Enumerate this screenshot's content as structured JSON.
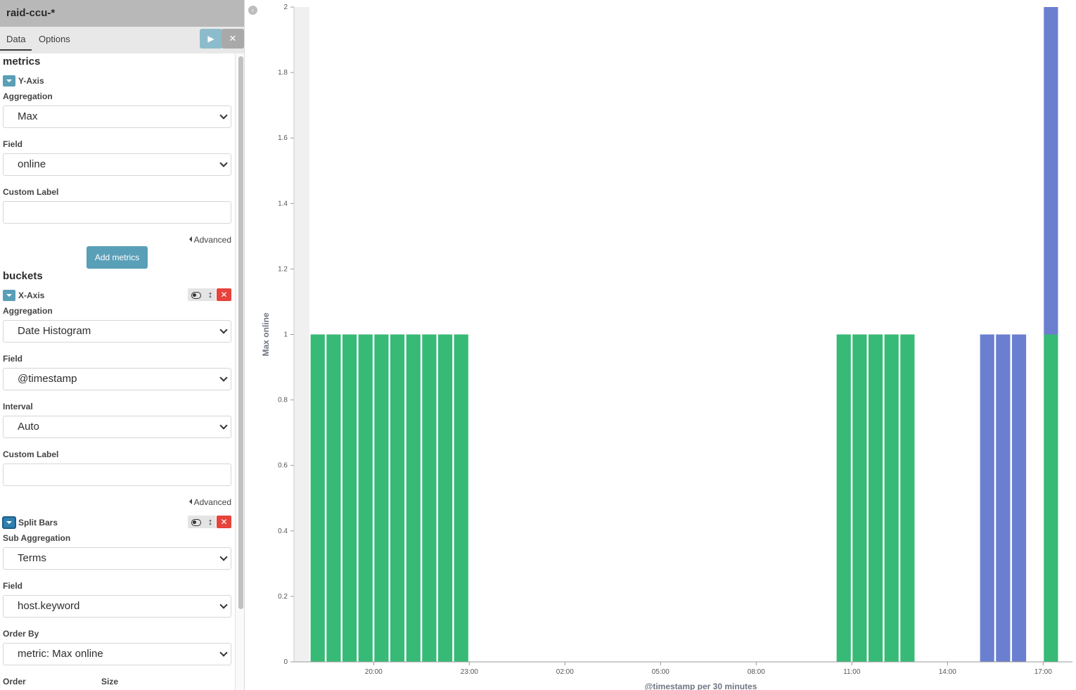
{
  "sidebar": {
    "title": "raid-ccu-*",
    "tabs": [
      {
        "label": "Data",
        "active": true
      },
      {
        "label": "Options",
        "active": false
      }
    ],
    "apply_icon": "play-icon",
    "apply_glyph": "▶",
    "discard_icon": "close-icon",
    "discard_glyph": "✕",
    "metrics": {
      "section_title": "metrics",
      "agg_title": "Y-Axis",
      "aggregation_label": "Aggregation",
      "aggregation_value": "Max",
      "field_label": "Field",
      "field_value": "online",
      "custom_label_label": "Custom Label",
      "custom_label_value": "",
      "advanced_label": "Advanced",
      "add_button": "Add metrics"
    },
    "buckets": {
      "section_title": "buckets",
      "x_axis": {
        "agg_title": "X-Axis",
        "aggregation_label": "Aggregation",
        "aggregation_value": "Date Histogram",
        "field_label": "Field",
        "field_value": "@timestamp",
        "interval_label": "Interval",
        "interval_value": "Auto",
        "custom_label_label": "Custom Label",
        "custom_label_value": "",
        "advanced_label": "Advanced"
      },
      "split_bars": {
        "agg_title": "Split Bars",
        "sub_aggregation_label": "Sub Aggregation",
        "sub_aggregation_value": "Terms",
        "field_label": "Field",
        "field_value": "host.keyword",
        "order_by_label": "Order By",
        "order_by_value": "metric: Max online",
        "order_label": "Order",
        "size_label": "Size"
      },
      "control_glyphs": {
        "move": "↕",
        "remove": "✕"
      }
    }
  },
  "collapse_glyph": "‹",
  "colors": {
    "green": "#36ba76",
    "blue": "#6a7fcf",
    "accent": "#5a9fb8",
    "danger": "#e7423c"
  },
  "chart_data": {
    "type": "bar",
    "stacked": true,
    "xlabel": "@timestamp per 30 minutes",
    "ylabel": "Max online",
    "ylim": [
      0,
      2
    ],
    "yticks": [
      "0",
      "0.2",
      "0.4",
      "0.6",
      "0.8",
      "1",
      "1.2",
      "1.4",
      "1.6",
      "1.8",
      "2"
    ],
    "xticks": [
      "20:00",
      "23:00",
      "02:00",
      "05:00",
      "08:00",
      "11:00",
      "14:00",
      "17:00"
    ],
    "x_hours": [
      18.0,
      18.5,
      19.0,
      19.5,
      20.0,
      20.5,
      21.0,
      21.5,
      22.0,
      22.5,
      34.5,
      35.0,
      35.5,
      36.0,
      36.5,
      39.0,
      39.5,
      40.0,
      41.0
    ],
    "series": [
      {
        "values": [
          1,
          1,
          1,
          1,
          1,
          1,
          1,
          1,
          1,
          1,
          1,
          1,
          1,
          1,
          1,
          0,
          0,
          0,
          1
        ]
      },
      {
        "values": [
          0,
          0,
          0,
          0,
          0,
          0,
          0,
          0,
          0,
          0,
          0,
          0,
          0,
          0,
          0,
          1,
          1,
          1,
          1
        ]
      }
    ]
  }
}
